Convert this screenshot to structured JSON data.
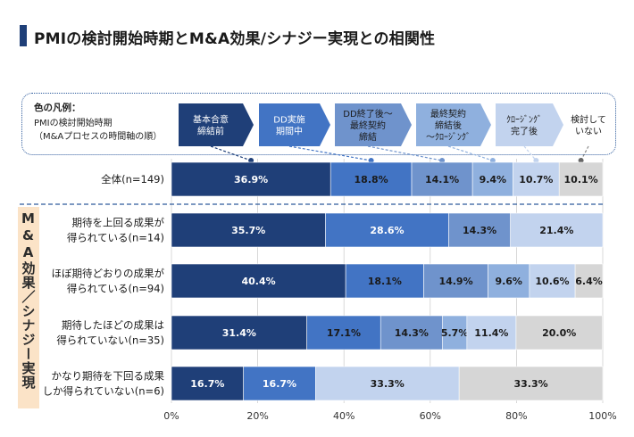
{
  "title": "PMIの検討開始時期とM&A効果/シナジー実現との相関性",
  "legend": {
    "title": "色の凡例：",
    "subtitle_lines": [
      "PMIの検討開始時期",
      "（M&Aプロセスの時間軸の順）"
    ],
    "stages": [
      [
        "基本合意",
        "締結前"
      ],
      [
        "DD実施",
        "期間中"
      ],
      [
        "DD終了後～",
        "最終契約",
        "締結"
      ],
      [
        "最終契約",
        "締結後",
        "～ｸﾛｰｼﾞﾝｸﾞ"
      ],
      [
        "ｸﾛｰｼﾞﾝｸﾞ",
        "完了後"
      ],
      [
        "検討して",
        "いない"
      ]
    ]
  },
  "group_label": "M&A効果／シナジー実現",
  "colors": {
    "title_bar": "#1f3f78",
    "series": [
      "#1f3f78",
      "#4274c4",
      "#6f93cc",
      "#8fb0de",
      "#c2d3ee",
      "#d6d6d6"
    ],
    "label_light": "#ffffff",
    "label_dark": "#1a1a1a",
    "group_bg": "#fbe3c7",
    "legend_border": "#2e5b9c"
  },
  "chart_data": {
    "type": "bar",
    "orientation": "horizontal",
    "stacked": true,
    "xlim": [
      0,
      100
    ],
    "xticks": [
      "0%",
      "20%",
      "40%",
      "60%",
      "80%",
      "100%"
    ],
    "categories": [
      [
        "全体(n=149)"
      ],
      [
        "期待を上回る成果が",
        "得られている(n=14)"
      ],
      [
        "ほぼ期待どおりの成果が",
        "得られている(n=94)"
      ],
      [
        "期待したほどの成果は",
        "得られていない(n=35)"
      ],
      [
        "かなり期待を下回る成果",
        "しか得られていない(n=6)"
      ]
    ],
    "series": [
      {
        "name": "基本合意締結前",
        "values": [
          36.9,
          35.7,
          40.4,
          31.4,
          16.7
        ]
      },
      {
        "name": "DD実施期間中",
        "values": [
          18.8,
          28.6,
          18.1,
          17.1,
          16.7
        ]
      },
      {
        "name": "DD終了後～最終契約締結",
        "values": [
          14.1,
          14.3,
          14.9,
          14.3,
          0
        ]
      },
      {
        "name": "最終契約締結後～ｸﾛｰｼﾞﾝｸﾞ",
        "values": [
          9.4,
          0,
          9.6,
          5.7,
          0
        ]
      },
      {
        "name": "ｸﾛｰｼﾞﾝｸﾞ完了後",
        "values": [
          10.7,
          21.4,
          10.6,
          11.4,
          33.3
        ]
      },
      {
        "name": "検討していない",
        "values": [
          10.1,
          0,
          6.4,
          20.0,
          33.3
        ]
      }
    ],
    "data_labels": [
      [
        "36.9%",
        "18.8%",
        "14.1%",
        "9.4%",
        "10.7%",
        "10.1%"
      ],
      [
        "35.7%",
        "28.6%",
        "14.3%",
        "",
        "21.4%",
        ""
      ],
      [
        "40.4%",
        "18.1%",
        "14.9%",
        "9.6%",
        "10.6%",
        "6.4%"
      ],
      [
        "31.4%",
        "17.1%",
        "14.3%",
        "5.7%",
        "11.4%",
        "20.0%"
      ],
      [
        "16.7%",
        "16.7%",
        "",
        "",
        "33.3%",
        "33.3%"
      ]
    ],
    "label_colors": [
      [
        "light",
        "dark",
        "dark",
        "dark",
        "dark",
        "dark"
      ],
      [
        "light",
        "light",
        "dark",
        "dark",
        "dark",
        "dark"
      ],
      [
        "light",
        "dark",
        "dark",
        "dark",
        "dark",
        "dark"
      ],
      [
        "light",
        "dark",
        "dark",
        "dark",
        "dark",
        "dark"
      ],
      [
        "light",
        "light",
        "dark",
        "dark",
        "dark",
        "dark"
      ]
    ]
  }
}
